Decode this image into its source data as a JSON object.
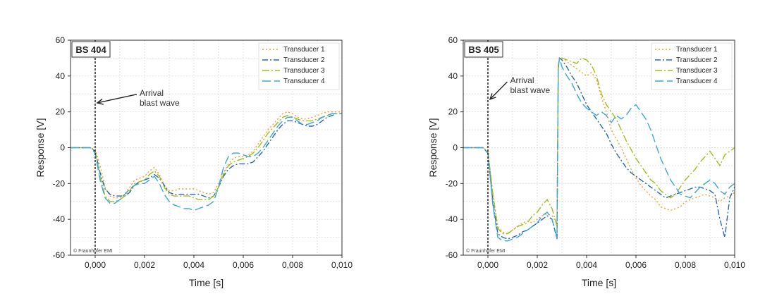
{
  "chart_data": [
    {
      "type": "line",
      "panel_label": "BS 404",
      "xlabel": "Time [s]",
      "ylabel": "Response [V]",
      "xlim": [
        -0.001,
        0.01
      ],
      "ylim": [
        -60,
        60
      ],
      "x_ticks": [
        "0,000",
        "0,002",
        "0,004",
        "0,006",
        "0,008",
        "0,010"
      ],
      "y_ticks": [
        "60",
        "40",
        "20",
        "0",
        "-20",
        "-40",
        "-60"
      ],
      "grid": true,
      "legend_position": "top-right",
      "annotation": [
        "Arrival",
        "blast wave"
      ],
      "annotation_arrow_to": [
        0.0,
        25
      ],
      "annotation_text_at": [
        0.0018,
        29
      ],
      "arrival_x": 0.0,
      "credit": "© Fraunhofer EMI",
      "series": [
        {
          "name": "Transducer 1",
          "color": "#f0a030",
          "dash": "2,3",
          "x": [
            -0.001,
            -0.0002,
            0.0,
            0.0002,
            0.0004,
            0.0006,
            0.0008,
            0.001,
            0.0012,
            0.0014,
            0.0016,
            0.0018,
            0.002,
            0.0022,
            0.0024,
            0.0026,
            0.0028,
            0.003,
            0.0032,
            0.0034,
            0.0036,
            0.0038,
            0.004,
            0.0042,
            0.0044,
            0.0046,
            0.0048,
            0.005,
            0.0052,
            0.0054,
            0.0056,
            0.0058,
            0.006,
            0.0062,
            0.0064,
            0.0066,
            0.0068,
            0.007,
            0.0072,
            0.0074,
            0.0076,
            0.0078,
            0.008,
            0.0082,
            0.0084,
            0.0086,
            0.0088,
            0.009,
            0.0092,
            0.0094,
            0.0096,
            0.0098,
            0.01
          ],
          "y": [
            0,
            0,
            -1,
            -10,
            -22,
            -27,
            -28,
            -28,
            -26,
            -22,
            -18,
            -17,
            -16,
            -13,
            -11,
            -15,
            -21,
            -24,
            -24,
            -23,
            -23,
            -23,
            -23,
            -24,
            -25,
            -26,
            -25,
            -20,
            -14,
            -9,
            -6,
            -5,
            -5,
            -4,
            -2,
            2,
            6,
            10,
            13,
            16,
            19,
            20,
            19,
            17,
            16,
            16,
            17,
            18,
            19,
            20,
            20,
            20,
            20
          ]
        },
        {
          "name": "Transducer 2",
          "color": "#2a66b8",
          "dash": "8,3,2,3",
          "x": [
            -0.001,
            -0.0002,
            0.0,
            0.0002,
            0.0004,
            0.0006,
            0.0008,
            0.001,
            0.0012,
            0.0014,
            0.0016,
            0.0018,
            0.002,
            0.0022,
            0.0024,
            0.0026,
            0.0028,
            0.003,
            0.0032,
            0.0034,
            0.0036,
            0.0038,
            0.004,
            0.0042,
            0.0044,
            0.0046,
            0.0048,
            0.005,
            0.0052,
            0.0054,
            0.0056,
            0.0058,
            0.006,
            0.0062,
            0.0064,
            0.0066,
            0.0068,
            0.007,
            0.0072,
            0.0074,
            0.0076,
            0.0078,
            0.008,
            0.0082,
            0.0084,
            0.0086,
            0.0088,
            0.009,
            0.0092,
            0.0094,
            0.0096,
            0.0098,
            0.01
          ],
          "y": [
            0,
            0,
            -2,
            -14,
            -23,
            -26,
            -27,
            -27,
            -27,
            -25,
            -21,
            -19,
            -18,
            -17,
            -15,
            -17,
            -21,
            -25,
            -26,
            -26,
            -26,
            -26,
            -26,
            -26,
            -27,
            -28,
            -27,
            -22,
            -16,
            -12,
            -10,
            -9,
            -9,
            -9,
            -8,
            -5,
            -2,
            2,
            6,
            10,
            13,
            15,
            15,
            14,
            13,
            12,
            12,
            13,
            15,
            17,
            18,
            19,
            19
          ]
        },
        {
          "name": "Transducer 3",
          "color": "#9cbf1a",
          "dash": "10,3,2,3",
          "x": [
            -0.001,
            -0.0002,
            0.0,
            0.0002,
            0.0004,
            0.0006,
            0.0008,
            0.001,
            0.0012,
            0.0014,
            0.0016,
            0.0018,
            0.002,
            0.0022,
            0.0024,
            0.0026,
            0.0028,
            0.003,
            0.0032,
            0.0034,
            0.0036,
            0.0038,
            0.004,
            0.0042,
            0.0044,
            0.0046,
            0.0048,
            0.005,
            0.0052,
            0.0054,
            0.0056,
            0.0058,
            0.006,
            0.0062,
            0.0064,
            0.0066,
            0.0068,
            0.007,
            0.0072,
            0.0074,
            0.0076,
            0.0078,
            0.008,
            0.0082,
            0.0084,
            0.0086,
            0.0088,
            0.009,
            0.0092,
            0.0094,
            0.0096,
            0.0098,
            0.01
          ],
          "y": [
            0,
            0,
            -2,
            -16,
            -27,
            -30,
            -30,
            -29,
            -27,
            -24,
            -20,
            -19,
            -18,
            -15,
            -13,
            -16,
            -22,
            -26,
            -27,
            -27,
            -27,
            -27,
            -28,
            -29,
            -29,
            -29,
            -27,
            -22,
            -15,
            -10,
            -8,
            -7,
            -6,
            -5,
            -3,
            0,
            4,
            8,
            11,
            14,
            17,
            18,
            17,
            16,
            15,
            15,
            15,
            16,
            17,
            18,
            19,
            19,
            19
          ]
        },
        {
          "name": "Transducer 4",
          "color": "#3aa8d8",
          "dash": "12,5",
          "x": [
            -0.001,
            -0.0002,
            0.0,
            0.0002,
            0.0004,
            0.0006,
            0.0008,
            0.001,
            0.0012,
            0.0014,
            0.0016,
            0.0018,
            0.002,
            0.0022,
            0.0024,
            0.0026,
            0.0028,
            0.003,
            0.0032,
            0.0034,
            0.0036,
            0.0038,
            0.004,
            0.0042,
            0.0044,
            0.0046,
            0.0048,
            0.005,
            0.0052,
            0.0054,
            0.0056,
            0.0058,
            0.006,
            0.0062,
            0.0064,
            0.0066,
            0.0068,
            0.007,
            0.0072,
            0.0074,
            0.0076,
            0.0078,
            0.008,
            0.0082,
            0.0084,
            0.0086,
            0.0088,
            0.009,
            0.0092,
            0.0094,
            0.0096,
            0.0098,
            0.01
          ],
          "y": [
            0,
            0,
            -3,
            -18,
            -28,
            -31,
            -31,
            -29,
            -26,
            -23,
            -21,
            -20,
            -20,
            -18,
            -16,
            -20,
            -26,
            -30,
            -32,
            -33,
            -34,
            -34,
            -35,
            -34,
            -33,
            -32,
            -30,
            -22,
            -11,
            -5,
            -3,
            -3,
            -4,
            -5,
            -5,
            -3,
            0,
            4,
            8,
            12,
            15,
            17,
            17,
            15,
            13,
            13,
            14,
            15,
            17,
            18,
            19,
            19,
            19
          ]
        }
      ]
    },
    {
      "type": "line",
      "panel_label": "BS 405",
      "xlabel": "Time [s]",
      "ylabel": "Response [V]",
      "xlim": [
        -0.001,
        0.01
      ],
      "ylim": [
        -60,
        60
      ],
      "x_ticks": [
        "0,000",
        "0,002",
        "0,004",
        "0,006",
        "0,008",
        "0,010"
      ],
      "y_ticks": [
        "60",
        "40",
        "20",
        "0",
        "-20",
        "-40",
        "-60"
      ],
      "grid": true,
      "legend_position": "top-right",
      "annotation": [
        "Arrival",
        "blast wave"
      ],
      "annotation_arrow_to": [
        0.0,
        27
      ],
      "annotation_text_at": [
        0.0009,
        36
      ],
      "arrival_x": 0.0,
      "credit": "© Fraunhofer EMI",
      "series": [
        {
          "name": "Transducer 1",
          "color": "#f0a030",
          "dash": "2,3",
          "x": [
            -0.001,
            -0.0002,
            0.0,
            0.0002,
            0.0004,
            0.0006,
            0.0008,
            0.001,
            0.0012,
            0.0014,
            0.0016,
            0.0018,
            0.002,
            0.0022,
            0.0024,
            0.0026,
            0.0028,
            0.00285,
            0.0029,
            0.003,
            0.0032,
            0.0034,
            0.0036,
            0.0038,
            0.004,
            0.0042,
            0.0044,
            0.0046,
            0.0048,
            0.005,
            0.0052,
            0.0054,
            0.0056,
            0.0058,
            0.006,
            0.0062,
            0.0064,
            0.0066,
            0.0068,
            0.007,
            0.0072,
            0.0074,
            0.0076,
            0.0078,
            0.008,
            0.0082,
            0.0084,
            0.0086,
            0.0088,
            0.009,
            0.0092,
            0.0094,
            0.0096,
            0.0098,
            0.01
          ],
          "y": [
            0,
            0,
            -2,
            -25,
            -44,
            -47,
            -48,
            -46,
            -44,
            -42,
            -41,
            -42,
            -40,
            -38,
            -37,
            -38,
            -42,
            45,
            50,
            50,
            48,
            46,
            44,
            42,
            40,
            42,
            38,
            28,
            20,
            10,
            5,
            0,
            -6,
            -12,
            -17,
            -21,
            -24,
            -27,
            -29,
            -33,
            -34,
            -35,
            -34,
            -33,
            -30,
            -29,
            -28,
            -27,
            -26,
            -27,
            -28,
            -30,
            -28,
            -27,
            -25
          ]
        },
        {
          "name": "Transducer 2",
          "color": "#2a66b8",
          "dash": "8,3,2,3",
          "x": [
            -0.001,
            -0.0002,
            0.0,
            0.0002,
            0.0004,
            0.0006,
            0.0008,
            0.001,
            0.0012,
            0.0014,
            0.0016,
            0.0018,
            0.002,
            0.0022,
            0.0024,
            0.0026,
            0.0028,
            0.00285,
            0.0029,
            0.003,
            0.0032,
            0.0034,
            0.0036,
            0.0038,
            0.004,
            0.0042,
            0.0044,
            0.0046,
            0.0048,
            0.005,
            0.0052,
            0.0054,
            0.0056,
            0.0058,
            0.006,
            0.0062,
            0.0064,
            0.0066,
            0.0068,
            0.007,
            0.0072,
            0.0074,
            0.0076,
            0.0078,
            0.008,
            0.0082,
            0.0084,
            0.0086,
            0.0088,
            0.009,
            0.0092,
            0.0094,
            0.0096,
            0.0098,
            0.01
          ],
          "y": [
            0,
            0,
            -3,
            -30,
            -48,
            -50,
            -51,
            -50,
            -49,
            -47,
            -46,
            -44,
            -42,
            -40,
            -38,
            -40,
            -51,
            44,
            50,
            49,
            45,
            40,
            36,
            30,
            24,
            20,
            16,
            12,
            8,
            2,
            -3,
            -7,
            -11,
            -14,
            -16,
            -18,
            -20,
            -22,
            -24,
            -26,
            -28,
            -27,
            -26,
            -25,
            -24,
            -23,
            -22,
            -22,
            -23,
            -24,
            -26,
            -40,
            -50,
            -28,
            -22
          ]
        },
        {
          "name": "Transducer 3",
          "color": "#9cbf1a",
          "dash": "10,3,2,3",
          "x": [
            -0.001,
            -0.0002,
            0.0,
            0.0002,
            0.0004,
            0.0006,
            0.0008,
            0.001,
            0.0012,
            0.0014,
            0.0016,
            0.0018,
            0.002,
            0.0022,
            0.0024,
            0.0026,
            0.0028,
            0.00285,
            0.0029,
            0.003,
            0.0032,
            0.0034,
            0.0036,
            0.0038,
            0.004,
            0.0042,
            0.0044,
            0.0046,
            0.0048,
            0.005,
            0.0052,
            0.0054,
            0.0056,
            0.0058,
            0.006,
            0.0062,
            0.0064,
            0.0066,
            0.0068,
            0.007,
            0.0072,
            0.0074,
            0.0076,
            0.0078,
            0.008,
            0.0082,
            0.0084,
            0.0086,
            0.0088,
            0.009,
            0.0092,
            0.0094,
            0.0096,
            0.0098,
            0.01
          ],
          "y": [
            0,
            0,
            -2,
            -26,
            -45,
            -48,
            -48,
            -46,
            -44,
            -43,
            -42,
            -38,
            -36,
            -32,
            -29,
            -34,
            -44,
            46,
            50,
            50,
            49,
            48,
            47,
            50,
            49,
            46,
            40,
            30,
            24,
            20,
            16,
            10,
            4,
            -1,
            -6,
            -10,
            -14,
            -18,
            -20,
            -24,
            -26,
            -28,
            -26,
            -22,
            -18,
            -15,
            -12,
            -8,
            -5,
            -2,
            -6,
            -10,
            -4,
            -2,
            0
          ]
        },
        {
          "name": "Transducer 4",
          "color": "#3aa8d8",
          "dash": "12,5",
          "x": [
            -0.001,
            -0.0002,
            0.0,
            0.0002,
            0.0004,
            0.0006,
            0.0008,
            0.001,
            0.0012,
            0.0014,
            0.0016,
            0.0018,
            0.002,
            0.0022,
            0.0024,
            0.0026,
            0.0028,
            0.00285,
            0.0029,
            0.003,
            0.0032,
            0.0034,
            0.0036,
            0.0038,
            0.004,
            0.0042,
            0.0044,
            0.0046,
            0.0048,
            0.005,
            0.0052,
            0.0054,
            0.0056,
            0.0058,
            0.006,
            0.0062,
            0.0064,
            0.0066,
            0.0068,
            0.007,
            0.0072,
            0.0074,
            0.0076,
            0.0078,
            0.008,
            0.0082,
            0.0084,
            0.0086,
            0.0088,
            0.009,
            0.0092,
            0.0094,
            0.0096,
            0.0098,
            0.01
          ],
          "y": [
            0,
            0,
            -3,
            -32,
            -50,
            -52,
            -52,
            -51,
            -50,
            -48,
            -46,
            -44,
            -42,
            -38,
            -36,
            -40,
            -50,
            44,
            50,
            45,
            40,
            36,
            30,
            25,
            22,
            20,
            18,
            20,
            18,
            14,
            18,
            16,
            18,
            22,
            24,
            20,
            16,
            10,
            2,
            -6,
            -12,
            -18,
            -22,
            -26,
            -27,
            -28,
            -25,
            -22,
            -20,
            -18,
            -20,
            -24,
            -26,
            -22,
            -20
          ]
        }
      ]
    }
  ]
}
